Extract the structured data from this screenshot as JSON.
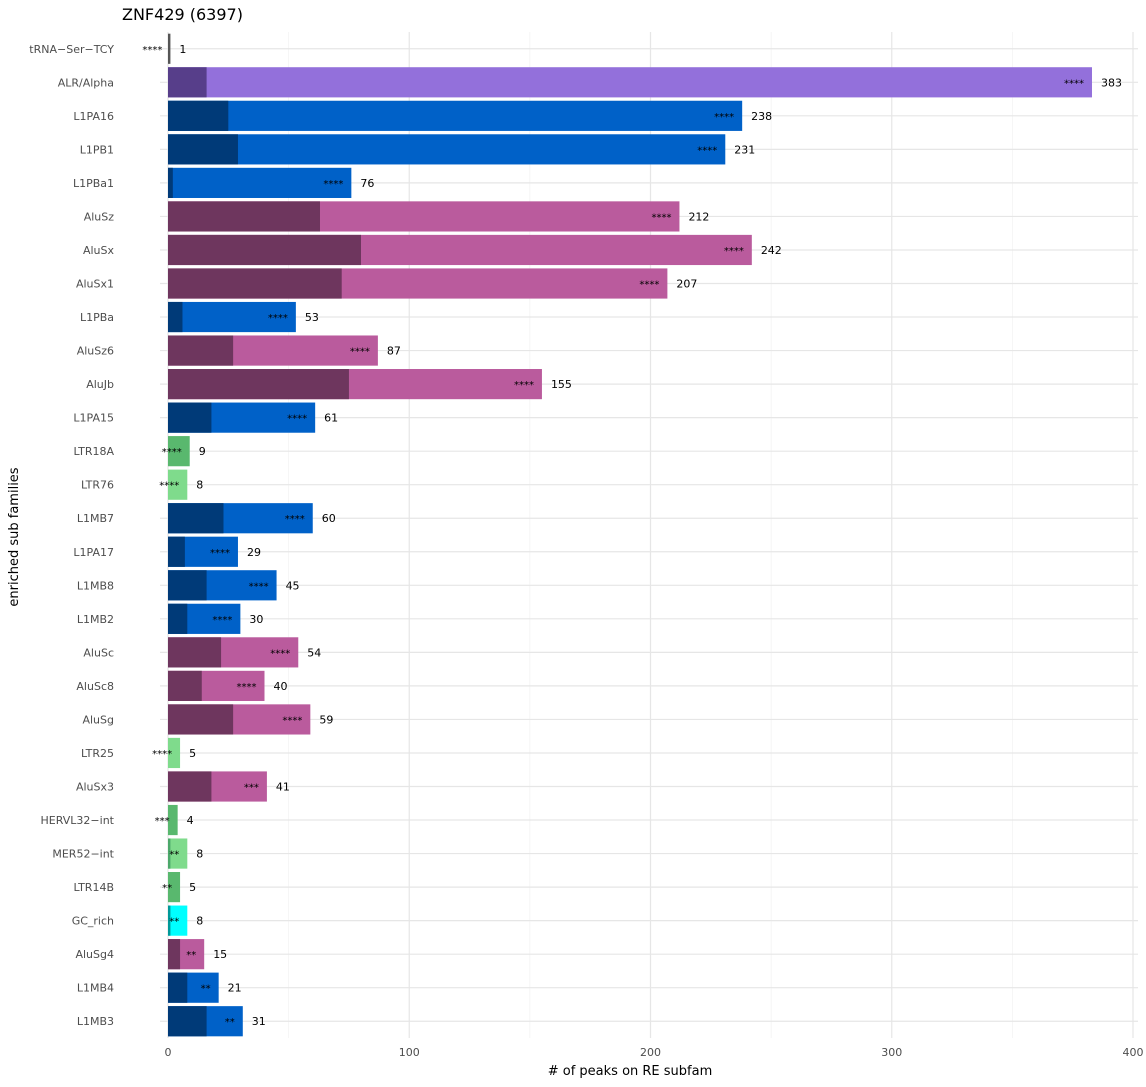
{
  "chart_data": {
    "type": "bar",
    "orientation": "horizontal",
    "stacked": true,
    "title": "ZNF429 (6397)",
    "xlabel": "# of peaks on RE subfam",
    "ylabel": "enriched sub families",
    "xlim": [
      0,
      400
    ],
    "xticks": [
      "0",
      "100",
      "200",
      "300",
      "400"
    ],
    "grid": true,
    "legend": "none",
    "categories": [
      "tRNA−Ser−TCY",
      "ALR/Alpha",
      "L1PA16",
      "L1PB1",
      "L1PBa1",
      "AluSz",
      "AluSx",
      "AluSx1",
      "L1PBa",
      "AluSz6",
      "AluJb",
      "L1PA15",
      "LTR18A",
      "LTR76",
      "L1MB7",
      "L1PA17",
      "L1MB8",
      "L1MB2",
      "AluSc",
      "AluSc8",
      "AluSg",
      "LTR25",
      "AluSx3",
      "HERVL32−int",
      "MER52−int",
      "LTR14B",
      "GC_rich",
      "AluSg4",
      "L1MB4",
      "L1MB3"
    ],
    "totals": [
      1,
      383,
      238,
      231,
      76,
      212,
      242,
      207,
      53,
      87,
      155,
      61,
      9,
      8,
      60,
      29,
      45,
      30,
      54,
      40,
      59,
      5,
      41,
      4,
      8,
      5,
      8,
      15,
      21,
      31
    ],
    "background": [
      1,
      16,
      25,
      29,
      2,
      63,
      80,
      72,
      6,
      27,
      75,
      18,
      0,
      0,
      23,
      7,
      16,
      8,
      22,
      14,
      27,
      0,
      18,
      0,
      1,
      0,
      1,
      5,
      8,
      16
    ],
    "significance": [
      "****",
      "****",
      "****",
      "****",
      "****",
      "****",
      "****",
      "****",
      "****",
      "****",
      "****",
      "****",
      "****",
      "****",
      "****",
      "****",
      "****",
      "****",
      "****",
      "****",
      "****",
      "****",
      "***",
      "***",
      "**",
      "**",
      "**",
      "**",
      "**",
      "**"
    ],
    "colors": [
      {
        "dark": "#555555",
        "light": "#555555"
      },
      {
        "dark": "#573E8A",
        "light": "#9370DB"
      },
      {
        "dark": "#003A78",
        "light": "#0061C8"
      },
      {
        "dark": "#003A78",
        "light": "#0061C8"
      },
      {
        "dark": "#003A78",
        "light": "#0061C8"
      },
      {
        "dark": "#6E365E",
        "light": "#BA5B9D"
      },
      {
        "dark": "#6E365E",
        "light": "#BA5B9D"
      },
      {
        "dark": "#6E365E",
        "light": "#BA5B9D"
      },
      {
        "dark": "#003A78",
        "light": "#0061C8"
      },
      {
        "dark": "#6E365E",
        "light": "#BA5B9D"
      },
      {
        "dark": "#6E365E",
        "light": "#BA5B9D"
      },
      {
        "dark": "#003A78",
        "light": "#0061C8"
      },
      {
        "dark": "#4CA86A",
        "light": "#59B86E"
      },
      {
        "dark": "#4CA86A",
        "light": "#7FDB8C"
      },
      {
        "dark": "#003A78",
        "light": "#0061C8"
      },
      {
        "dark": "#003A78",
        "light": "#0061C8"
      },
      {
        "dark": "#003A78",
        "light": "#0061C8"
      },
      {
        "dark": "#003A78",
        "light": "#0061C8"
      },
      {
        "dark": "#6E365E",
        "light": "#BA5B9D"
      },
      {
        "dark": "#6E365E",
        "light": "#BA5B9D"
      },
      {
        "dark": "#6E365E",
        "light": "#BA5B9D"
      },
      {
        "dark": "#4CA86A",
        "light": "#7FDB8C"
      },
      {
        "dark": "#6E365E",
        "light": "#BA5B9D"
      },
      {
        "dark": "#4CA86A",
        "light": "#59B86E"
      },
      {
        "dark": "#4CA86A",
        "light": "#7FDB8C"
      },
      {
        "dark": "#4CA86A",
        "light": "#59B86E"
      },
      {
        "dark": "#009999",
        "light": "#00FFFF"
      },
      {
        "dark": "#6E365E",
        "light": "#BA5B9D"
      },
      {
        "dark": "#003A78",
        "light": "#0061C8"
      },
      {
        "dark": "#003A78",
        "light": "#0061C8"
      }
    ]
  }
}
